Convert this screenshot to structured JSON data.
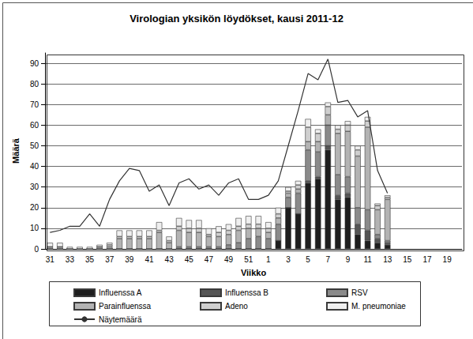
{
  "chart_data": {
    "type": "bar",
    "title": "Virologian yksikön löydökset, kausi 2011-12",
    "x_label": "Viikko",
    "y_label": "Määrä",
    "categories": [
      "31",
      null,
      "33",
      null,
      "35",
      null,
      "37",
      null,
      "39",
      null,
      "41",
      null,
      "43",
      null,
      "45",
      null,
      "47",
      null,
      "49",
      null,
      "51",
      null,
      "1",
      null,
      "3",
      null,
      "5",
      null,
      "7",
      null,
      "9",
      null,
      "11",
      null,
      "13",
      null,
      "15",
      null,
      "17",
      null,
      "19",
      null
    ],
    "series": [
      {
        "name": "Influenssa A",
        "type": "bar",
        "color": "#1e1e1e",
        "values": [
          0,
          0,
          0,
          0,
          0,
          0,
          0,
          0,
          0,
          0,
          0,
          0,
          0,
          0,
          0,
          0,
          0,
          0,
          0,
          0,
          0,
          0,
          0,
          4,
          20,
          17,
          32,
          34,
          48,
          24,
          25,
          7,
          4,
          3,
          2,
          null,
          null,
          null,
          null,
          null,
          null,
          null
        ]
      },
      {
        "name": "Influenssa B",
        "type": "bar",
        "color": "#555555",
        "values": [
          0,
          0,
          0,
          0,
          0,
          0,
          0,
          0,
          0,
          0,
          0,
          0,
          0,
          0,
          0,
          0,
          0,
          0,
          0,
          0,
          0,
          0,
          0,
          0,
          0,
          0,
          1,
          1,
          2,
          2,
          2,
          5,
          5,
          2,
          1,
          null,
          null,
          null,
          null,
          null,
          null,
          null
        ]
      },
      {
        "name": "RSV",
        "type": "bar",
        "color": "#8a8a8a",
        "values": [
          0,
          0,
          0,
          0,
          0,
          0,
          0,
          0,
          0,
          0,
          0,
          0,
          0,
          1,
          1,
          1,
          1,
          1,
          2,
          3,
          5,
          6,
          5,
          8,
          5,
          10,
          15,
          12,
          10,
          10,
          8,
          8,
          10,
          2,
          1,
          null,
          null,
          null,
          null,
          null,
          null,
          null
        ]
      },
      {
        "name": "Parainfluenssa",
        "type": "bar",
        "color": "#b3b3b3",
        "values": [
          1,
          1,
          0,
          0,
          0,
          1,
          1,
          5,
          5,
          5,
          5,
          8,
          3,
          8,
          7,
          7,
          5,
          5,
          5,
          6,
          5,
          4,
          3,
          3,
          2,
          2,
          4,
          5,
          5,
          20,
          22,
          25,
          40,
          12,
          20,
          null,
          null,
          null,
          null,
          null,
          null,
          null
        ]
      },
      {
        "name": "Adeno",
        "type": "bar",
        "color": "#cfcfcf",
        "values": [
          0,
          0,
          0,
          0,
          0,
          0,
          1,
          1,
          1,
          1,
          1,
          1,
          1,
          2,
          2,
          2,
          1,
          2,
          2,
          2,
          2,
          2,
          2,
          2,
          1,
          2,
          7,
          4,
          4,
          2,
          3,
          3,
          3,
          2,
          1,
          null,
          null,
          null,
          null,
          null,
          null,
          null
        ]
      },
      {
        "name": "M. pneumoniae",
        "type": "bar",
        "color": "#efefef",
        "values": [
          2,
          2,
          1,
          1,
          1,
          1,
          1,
          3,
          3,
          3,
          3,
          4,
          2,
          4,
          4,
          4,
          3,
          3,
          3,
          4,
          4,
          4,
          3,
          3,
          2,
          2,
          4,
          2,
          2,
          2,
          2,
          2,
          2,
          1,
          1,
          null,
          null,
          null,
          null,
          null,
          null,
          null
        ]
      },
      {
        "name": "Näytemäärä",
        "type": "line",
        "color": "#333333",
        "values": [
          8,
          9,
          11,
          11,
          17,
          11,
          24,
          33,
          39,
          38,
          28,
          31,
          21,
          32,
          34,
          29,
          31,
          26,
          32,
          34,
          24,
          24,
          26,
          33,
          50,
          67,
          85,
          82,
          92,
          71,
          72,
          64,
          67,
          38,
          27,
          null,
          null,
          null,
          null,
          null,
          null,
          null
        ]
      }
    ],
    "ylim": [
      0,
      95
    ],
    "yticks": [
      0,
      10,
      20,
      30,
      40,
      50,
      60,
      70,
      80,
      90
    ],
    "grid": true,
    "stacked": true,
    "legend": "bottom"
  }
}
